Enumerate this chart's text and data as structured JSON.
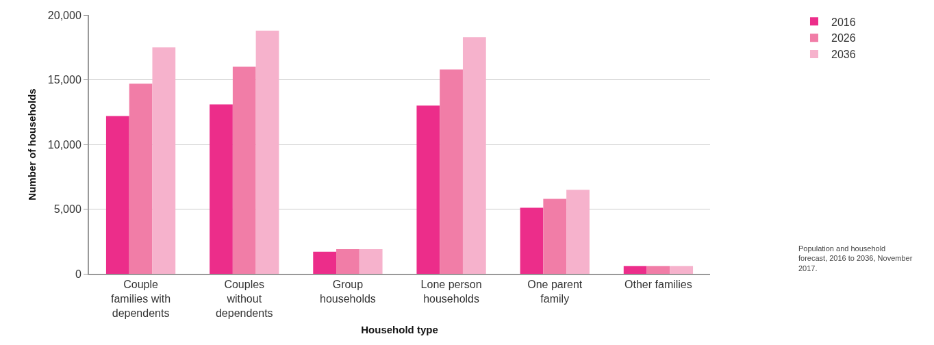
{
  "chart_data": {
    "type": "bar",
    "xlabel": "Household type",
    "ylabel": "Number of households",
    "categories": [
      "Couple families with dependents",
      "Couples without dependents",
      "Group households",
      "Lone person households",
      "One parent family",
      "Other families"
    ],
    "series": [
      {
        "name": "2016",
        "color": "#ec2d8a",
        "values": [
          12200,
          13100,
          1700,
          13000,
          5100,
          600
        ]
      },
      {
        "name": "2026",
        "color": "#f17da7",
        "values": [
          14700,
          16000,
          1900,
          15800,
          5800,
          600
        ]
      },
      {
        "name": "2036",
        "color": "#f6b2cc",
        "values": [
          17500,
          18800,
          1900,
          18300,
          6500,
          600
        ]
      }
    ],
    "ylim": [
      0,
      20000
    ],
    "yticks": [
      {
        "value": 0,
        "label": "0"
      },
      {
        "value": 5000,
        "label": "5,000"
      },
      {
        "value": 10000,
        "label": "10,000"
      },
      {
        "value": 15000,
        "label": "15,000"
      },
      {
        "value": 20000,
        "label": "20,000"
      }
    ],
    "grid": "y",
    "legend": "top right",
    "annotations": [
      "Population and household forecast, 2016 to 2036, November 2017."
    ]
  }
}
